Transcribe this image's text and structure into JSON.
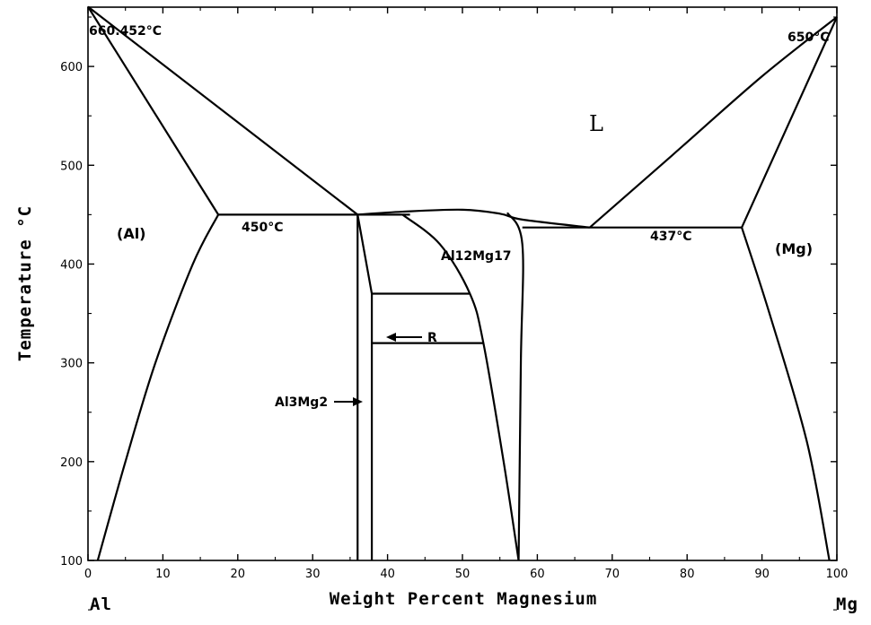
{
  "diagram": {
    "x_axis_title": "Weight Percent Magnesium",
    "y_axis_title": "Temperature °C",
    "left_element": "Al",
    "right_element": "Mg",
    "x_ticks": [
      0,
      10,
      20,
      30,
      40,
      50,
      60,
      70,
      80,
      90,
      100
    ],
    "y_ticks": [
      100,
      200,
      300,
      400,
      500,
      600
    ],
    "xlim": [
      0,
      100
    ],
    "ylim": [
      100,
      660
    ],
    "annotations": {
      "al_melting": "660.452°C",
      "mg_melting": "650°C",
      "eutectic_left": "450°C",
      "eutectic_right": "437°C"
    },
    "phases": {
      "liquid": "L",
      "al_solid": "(Al)",
      "mg_solid": "(Mg)",
      "r_phase": "R",
      "beta_phase": "Al3Mg2",
      "gamma_phase": "Al12Mg17"
    }
  },
  "chart_data": {
    "type": "phase-diagram",
    "x_label": "Weight Percent Magnesium",
    "y_label": "Temperature °C",
    "x_range": [
      0,
      100
    ],
    "y_range": [
      100,
      660
    ],
    "curves": [
      {
        "name": "liquidus-al",
        "points": [
          [
            0,
            660.452
          ],
          [
            36,
            450
          ]
        ]
      },
      {
        "name": "solidus-al",
        "points": [
          [
            0,
            660.452
          ],
          [
            17.4,
            450
          ]
        ]
      },
      {
        "name": "solvus-al",
        "points": [
          [
            17.4,
            450
          ],
          [
            14,
            400
          ],
          [
            9,
            300
          ],
          [
            5,
            200
          ],
          [
            1.3,
            100
          ]
        ]
      },
      {
        "name": "eutectic-left",
        "points": [
          [
            17.4,
            450
          ],
          [
            36,
            450
          ]
        ]
      },
      {
        "name": "beta-left-boundary",
        "points": [
          [
            36,
            450
          ],
          [
            36,
            100
          ]
        ]
      },
      {
        "name": "beta-right-boundary",
        "points": [
          [
            36,
            450
          ],
          [
            37.9,
            370
          ],
          [
            37.9,
            100
          ]
        ]
      },
      {
        "name": "peritectic",
        "points": [
          [
            36,
            450
          ],
          [
            43,
            450
          ]
        ]
      },
      {
        "name": "liquidus-mid-left",
        "points": [
          [
            36,
            450
          ],
          [
            42,
            453
          ],
          [
            50,
            455
          ],
          [
            55,
            451
          ],
          [
            58,
            445
          ],
          [
            67,
            437
          ]
        ]
      },
      {
        "name": "gamma-left-boundary",
        "points": [
          [
            42,
            450
          ],
          [
            47,
            420
          ],
          [
            51,
            370
          ],
          [
            52.8,
            320
          ],
          [
            55.5,
            200
          ],
          [
            57.5,
            100
          ]
        ]
      },
      {
        "name": "gamma-right-boundary",
        "points": [
          [
            56,
            452
          ],
          [
            58,
            420
          ],
          [
            57.8,
            300
          ],
          [
            57.5,
            100
          ]
        ]
      },
      {
        "name": "eutectic-right",
        "points": [
          [
            58,
            437
          ],
          [
            87.3,
            437
          ]
        ]
      },
      {
        "name": "liquidus-mg",
        "points": [
          [
            67,
            437
          ],
          [
            78,
            510
          ],
          [
            90,
            590
          ],
          [
            100,
            650
          ]
        ]
      },
      {
        "name": "solidus-mg",
        "points": [
          [
            87.3,
            437
          ],
          [
            100,
            650
          ]
        ]
      },
      {
        "name": "solvus-mg",
        "points": [
          [
            87.3,
            437
          ],
          [
            91,
            350
          ],
          [
            96,
            220
          ],
          [
            99,
            100
          ]
        ]
      },
      {
        "name": "r-phase-top",
        "points": [
          [
            37.9,
            370
          ],
          [
            51,
            370
          ]
        ]
      },
      {
        "name": "r-phase-bottom",
        "points": [
          [
            37.9,
            320
          ],
          [
            52.8,
            320
          ]
        ]
      }
    ]
  }
}
